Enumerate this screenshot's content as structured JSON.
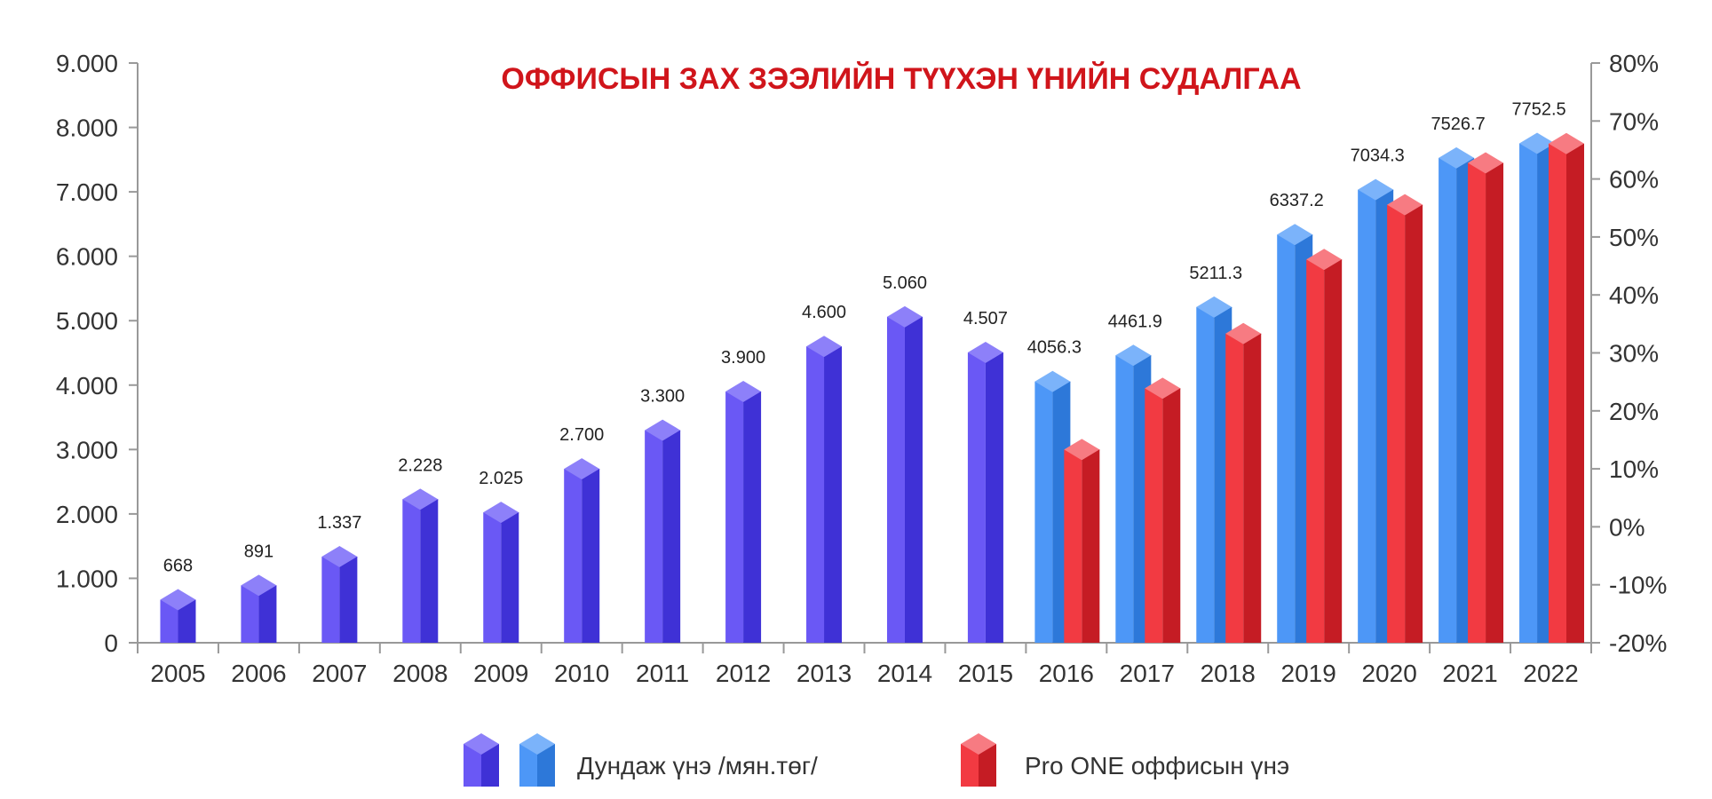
{
  "chart_data": {
    "type": "bar",
    "title": "ОФФИСЫН ЗАХ ЗЭЭЛИЙН ТҮҮХЭН ҮНИЙН СУДАЛГАА",
    "xlabel": "",
    "ylabel": "",
    "categories": [
      "2005",
      "2006",
      "2007",
      "2008",
      "2009",
      "2010",
      "2011",
      "2012",
      "2013",
      "2014",
      "2015",
      "2016",
      "2017",
      "2018",
      "2019",
      "2020",
      "2021",
      "2022"
    ],
    "ylim": [
      0,
      9000
    ],
    "y2lim": [
      "-20%",
      "80%"
    ],
    "y_ticks": [
      "0",
      "1.000",
      "2.000",
      "3.000",
      "4.000",
      "5.000",
      "6.000",
      "7.000",
      "8.000",
      "9.000"
    ],
    "y2_ticks": [
      "-20%",
      "-10%",
      "0%",
      "10%",
      "20%",
      "30%",
      "40%",
      "50%",
      "60%",
      "70%",
      "80%"
    ],
    "grid": false,
    "legend_position": "bottom",
    "colors": {
      "avg_early_front": "#6a58f5",
      "avg_early_side": "#3f31d6",
      "avg_early_top": "#8d80f9",
      "avg_late_front": "#4d97f7",
      "avg_late_side": "#2d78d9",
      "avg_late_top": "#7bb3fa",
      "pro_front": "#f23a42",
      "pro_side": "#c51c24",
      "pro_top": "#f77b82",
      "title": "#d0151b",
      "axis": "#999999"
    },
    "series": [
      {
        "name": "Дундаж үнэ /мян.төг/",
        "values": [
          668,
          891,
          1337,
          2228,
          2025,
          2700,
          3300,
          3900,
          4600,
          5060,
          4507,
          4056.3,
          4461.9,
          5211.3,
          6337.2,
          7034.3,
          7526.7,
          7752.5
        ],
        "labels": [
          "668",
          "891",
          "1.337",
          "2.228",
          "2.025",
          "2.700",
          "3.300",
          "3.900",
          "4.600",
          "5.060",
          "4.507",
          "4056.3",
          "4461.9",
          "5211.3",
          "6337.2",
          "7034.3",
          "7526.7",
          "7752.5"
        ]
      },
      {
        "name": "Pro ONE оффисын үнэ",
        "values": [
          null,
          null,
          null,
          null,
          null,
          null,
          null,
          null,
          null,
          null,
          null,
          3000,
          3950,
          4800,
          5950,
          6800,
          7450,
          7750
        ]
      }
    ],
    "legend": [
      {
        "label": "Дундаж үнэ /мян.төг/",
        "swatches": [
          "avg_early",
          "avg_late"
        ]
      },
      {
        "label": "Pro ONE оффисын үнэ",
        "swatches": [
          "pro"
        ]
      }
    ]
  }
}
